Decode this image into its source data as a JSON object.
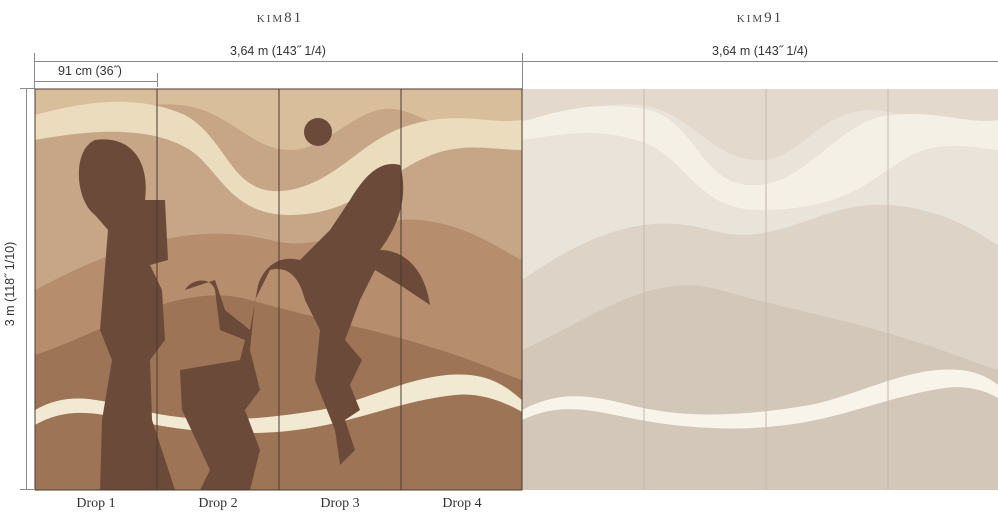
{
  "panels": [
    {
      "code": "KIM81",
      "width_label": "3,64 m (143˝ 1/4)"
    },
    {
      "code": "KIM91",
      "width_label": "3,64 m (143˝ 1/4)"
    }
  ],
  "drop_width_label": "91 cm (36˝)",
  "height_label": "3 m (118˝ 1/10)",
  "drops": [
    "Drop 1",
    "Drop 2",
    "Drop 3",
    "Drop 4"
  ],
  "colors": {
    "kim81_base": "#a98566",
    "kim81_light": "#e8d9b8",
    "kim81_mid": "#bb9879",
    "kim81_dark": "#8f6a4e",
    "kim81_figure": "#6a4a3b",
    "kim91_base": "#e8e0d6",
    "kim91_light": "#f4efe6",
    "kim91_mid": "#dcd1c5",
    "kim91_dark": "#cfc3b6"
  }
}
